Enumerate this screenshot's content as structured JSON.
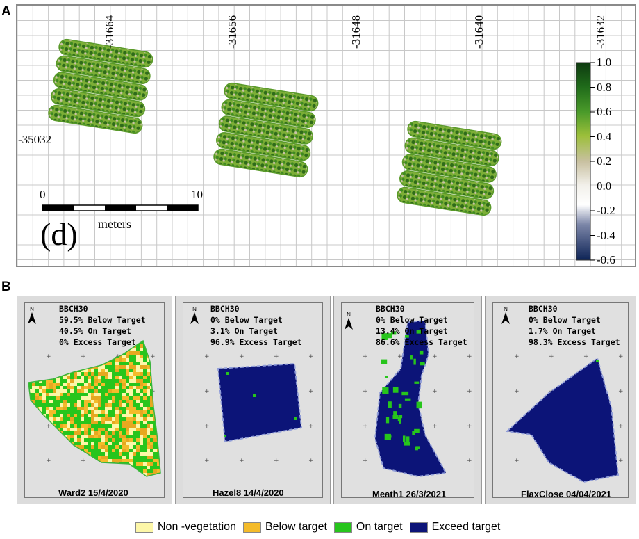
{
  "panelA": {
    "letter": "A",
    "x_ticks": [
      "-31664",
      "-31656",
      "-31648",
      "-31640",
      "-31632"
    ],
    "y_tick": "-35032",
    "colorbar": {
      "labels": [
        "1.0",
        "0.8",
        "0.6",
        "0.4",
        "0.2",
        "0.0",
        "-0.2",
        "-0.4",
        "-0.6"
      ],
      "range": [
        -0.6,
        1.0
      ]
    },
    "scalebar": {
      "start": "0",
      "end": "10",
      "unit": "meters"
    },
    "sublabel": "(d)"
  },
  "panelB": {
    "letter": "B",
    "maps": [
      {
        "stage": "BBCH30",
        "below": "59.5% Below Target",
        "on": "40.5% On Target",
        "excess": "0% Excess Target",
        "site": "Ward2 15/4/2020",
        "north": "N"
      },
      {
        "stage": "BBCH30",
        "below": "0% Below Target",
        "on": "3.1% On Target",
        "excess": "96.9% Excess Target",
        "site": "Hazel8 14/4/2020",
        "north": "N"
      },
      {
        "stage": "BBCH30",
        "below": "0% Below Target",
        "on": "13.4% On Target",
        "excess": "86.6% Excess Target",
        "site": "Meath1 26/3/2021",
        "north": "N"
      },
      {
        "stage": "BBCH30",
        "below": "0% Below Target",
        "on": "1.7% On Target",
        "excess": "98.3% Excess Target",
        "site": "FlaxClose 04/04/2021",
        "north": "N"
      }
    ],
    "legend": [
      {
        "label": "Non -vegetation",
        "color": "#fdf7a8"
      },
      {
        "label": "Below target",
        "color": "#f4bb2a"
      },
      {
        "label": "On target",
        "color": "#27c51c"
      },
      {
        "label": "Exceed target",
        "color": "#0c1478"
      }
    ]
  }
}
